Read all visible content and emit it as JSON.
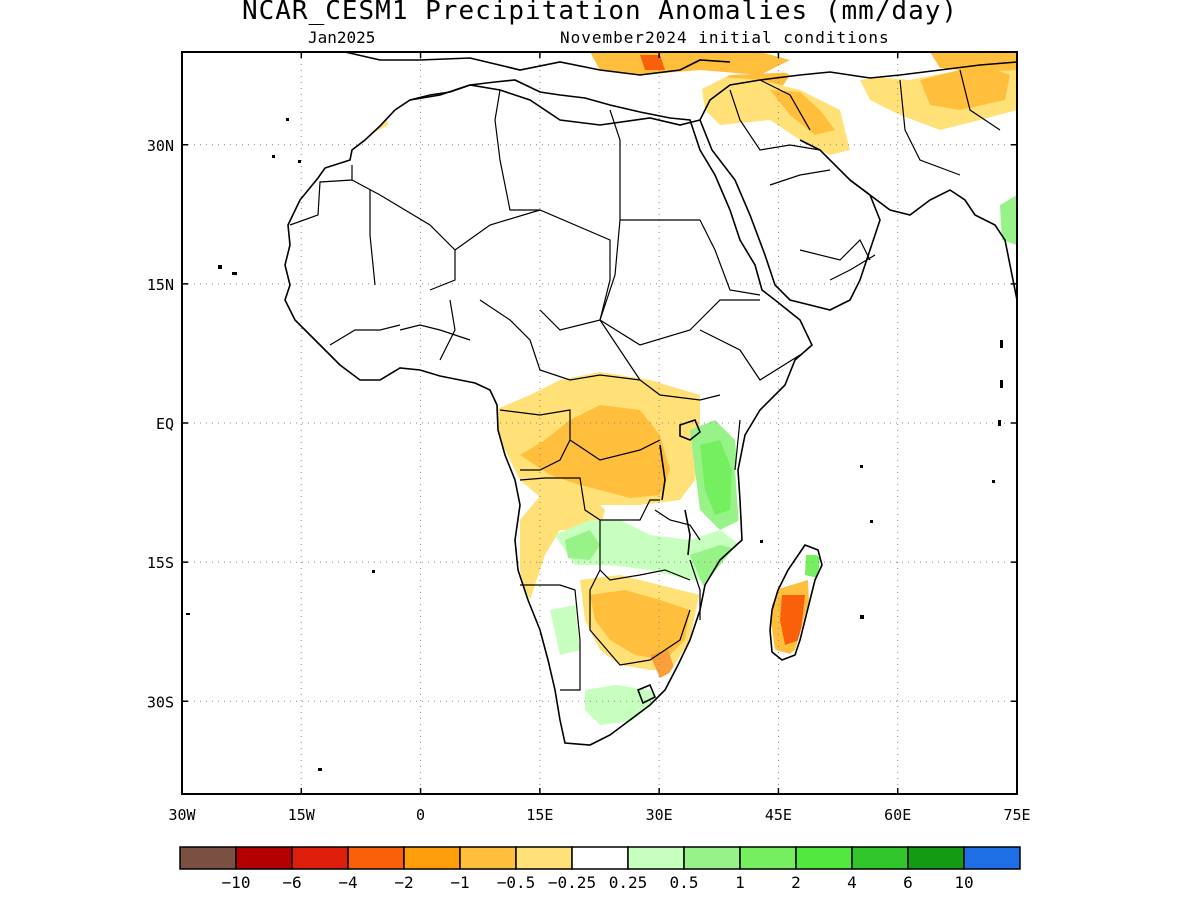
{
  "title": "NCAR_CESM1 Precipitation Anomalies (mm/day)",
  "valid_month": "Jan2025",
  "init_conditions": "November2024 initial conditions",
  "map": {
    "lon_range": [
      -30,
      75
    ],
    "lat_range": [
      -40,
      40
    ],
    "lon_ticks": [
      {
        "lon": -30,
        "label": "30W"
      },
      {
        "lon": -15,
        "label": "15W"
      },
      {
        "lon": 0,
        "label": "0"
      },
      {
        "lon": 15,
        "label": "15E"
      },
      {
        "lon": 30,
        "label": "30E"
      },
      {
        "lon": 45,
        "label": "45E"
      },
      {
        "lon": 60,
        "label": "60E"
      },
      {
        "lon": 75,
        "label": "75E"
      }
    ],
    "lat_ticks": [
      {
        "lat": 30,
        "label": "30N"
      },
      {
        "lat": 15,
        "label": "15N"
      },
      {
        "lat": 0,
        "label": "EQ"
      },
      {
        "lat": -15,
        "label": "15S"
      },
      {
        "lat": -30,
        "label": "30S"
      }
    ],
    "gridlines": true,
    "coastline_color": "#000000"
  },
  "colorbar": {
    "colors": [
      "#7a5042",
      "#b40000",
      "#dc1e0a",
      "#fa5f0a",
      "#ff9e0a",
      "#ffbe3c",
      "#ffe178",
      "#ffffff",
      "#c6ffbe",
      "#97f287",
      "#75ee60",
      "#53e840",
      "#2fc52b",
      "#149b14",
      "#1e6fe6"
    ],
    "labels": [
      "−10",
      "−6",
      "−4",
      "−2",
      "−1",
      "−0.5",
      "−0.25",
      "0.25",
      "0.5",
      "1",
      "2",
      "4",
      "6",
      "10"
    ]
  },
  "anomaly_regions": [
    {
      "name": "central-africa-dry",
      "category": "-1",
      "color": "#ffbe3c"
    },
    {
      "name": "southern-africa-dry",
      "category": "-1",
      "color": "#ffbe3c"
    },
    {
      "name": "madagascar-dry",
      "category": "-2",
      "color": "#fa5f0a"
    },
    {
      "name": "east-africa-wet",
      "category": "1",
      "color": "#75ee60"
    },
    {
      "name": "angola-zambia-wet",
      "category": "0.5",
      "color": "#97f287"
    },
    {
      "name": "middle-east-dry",
      "category": "-1",
      "color": "#ffbe3c"
    },
    {
      "name": "south-africa-wet",
      "category": "0.25",
      "color": "#c6ffbe"
    }
  ]
}
